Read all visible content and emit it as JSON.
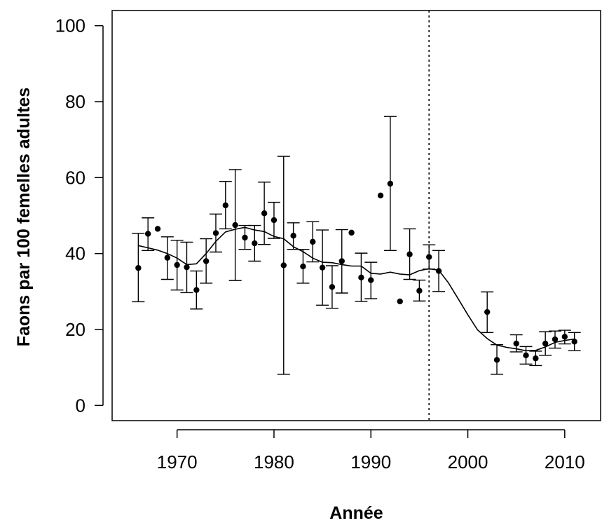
{
  "chart_data": {
    "type": "scatter",
    "title": "",
    "xlabel": "Année",
    "ylabel": "Faons par 100 femelles adultes",
    "xlim": [
      1963.3,
      2013.7
    ],
    "ylim": [
      -4,
      104
    ],
    "xticks": [
      1970,
      1980,
      1990,
      2000,
      2010
    ],
    "yticks": [
      0,
      20,
      40,
      60,
      80,
      100
    ],
    "xtick_labels": [
      "1970",
      "1980",
      "1990",
      "2000",
      "2010"
    ],
    "ytick_labels": [
      "0",
      "20",
      "40",
      "60",
      "80",
      "100"
    ],
    "grid": false,
    "legend": "none",
    "vertical_reference_line": {
      "x": 1996,
      "style": "dotted"
    },
    "points": [
      {
        "x": 1966,
        "y": 36.2,
        "low": 27.3,
        "high": 45.3
      },
      {
        "x": 1967,
        "y": 45.2,
        "low": 40.8,
        "high": 49.4
      },
      {
        "x": 1968,
        "y": 46.5
      },
      {
        "x": 1969,
        "y": 38.9,
        "low": 33.2,
        "high": 44.4
      },
      {
        "x": 1970,
        "y": 37.0,
        "low": 30.4,
        "high": 43.5
      },
      {
        "x": 1971,
        "y": 36.4,
        "low": 29.7,
        "high": 43.0
      },
      {
        "x": 1972,
        "y": 30.4,
        "low": 25.4,
        "high": 35.4
      },
      {
        "x": 1973,
        "y": 38.0,
        "low": 32.2,
        "high": 43.9
      },
      {
        "x": 1974,
        "y": 45.4,
        "low": 40.4,
        "high": 50.4
      },
      {
        "x": 1975,
        "y": 52.7,
        "low": 46.5,
        "high": 59.0
      },
      {
        "x": 1976,
        "y": 47.5,
        "low": 32.9,
        "high": 62.1
      },
      {
        "x": 1977,
        "y": 44.2,
        "low": 41.1,
        "high": 47.4
      },
      {
        "x": 1978,
        "y": 42.7,
        "low": 38.0,
        "high": 47.4
      },
      {
        "x": 1979,
        "y": 50.6,
        "low": 42.4,
        "high": 58.8
      },
      {
        "x": 1980,
        "y": 48.8,
        "low": 44.0,
        "high": 53.5
      },
      {
        "x": 1981,
        "y": 36.9,
        "low": 8.2,
        "high": 65.6
      },
      {
        "x": 1982,
        "y": 44.7,
        "low": 41.1,
        "high": 48.1
      },
      {
        "x": 1983,
        "y": 36.6,
        "low": 32.2,
        "high": 41.1
      },
      {
        "x": 1984,
        "y": 43.1,
        "low": 37.8,
        "high": 48.4
      },
      {
        "x": 1985,
        "y": 36.3,
        "low": 26.4,
        "high": 46.2
      },
      {
        "x": 1986,
        "y": 31.2,
        "low": 25.6,
        "high": 36.8
      },
      {
        "x": 1987,
        "y": 38.0,
        "low": 29.6,
        "high": 46.3
      },
      {
        "x": 1988,
        "y": 45.5
      },
      {
        "x": 1989,
        "y": 33.7,
        "low": 27.4,
        "high": 40.1
      },
      {
        "x": 1990,
        "y": 33.0,
        "low": 28.1,
        "high": 37.7
      },
      {
        "x": 1991,
        "y": 55.3
      },
      {
        "x": 1992,
        "y": 58.4,
        "low": 40.8,
        "high": 76.1
      },
      {
        "x": 1993,
        "y": 27.4
      },
      {
        "x": 1994,
        "y": 39.8,
        "low": 33.2,
        "high": 46.5
      },
      {
        "x": 1995,
        "y": 30.2,
        "low": 27.5,
        "high": 33.0
      },
      {
        "x": 1996,
        "y": 39.1,
        "low": 35.9,
        "high": 42.3
      },
      {
        "x": 1997,
        "y": 35.4,
        "low": 30.0,
        "high": 40.8
      },
      {
        "x": 2002,
        "y": 24.6,
        "low": 19.2,
        "high": 29.9
      },
      {
        "x": 2003,
        "y": 12.0,
        "low": 8.2,
        "high": 16.0
      },
      {
        "x": 2005,
        "y": 16.3,
        "low": 14.1,
        "high": 18.6
      },
      {
        "x": 2006,
        "y": 13.2,
        "low": 10.9,
        "high": 15.5
      },
      {
        "x": 2007,
        "y": 12.4,
        "low": 10.5,
        "high": 14.3
      },
      {
        "x": 2008,
        "y": 16.3,
        "low": 13.2,
        "high": 19.4
      },
      {
        "x": 2009,
        "y": 17.4,
        "low": 15.1,
        "high": 19.6
      },
      {
        "x": 2010,
        "y": 18.1,
        "low": 16.2,
        "high": 19.8
      },
      {
        "x": 2011,
        "y": 16.8,
        "low": 14.4,
        "high": 19.2
      }
    ],
    "trend_line": {
      "x": [
        1966,
        1967,
        1968,
        1969,
        1970,
        1971,
        1972,
        1973,
        1974,
        1975,
        1976,
        1977,
        1978,
        1979,
        1980,
        1981,
        1982,
        1983,
        1984,
        1985,
        1986,
        1987,
        1988,
        1989,
        1990,
        1991,
        1992,
        1993,
        1994,
        1995,
        1996,
        1997,
        1998,
        1999,
        2000,
        2001,
        2002,
        2003,
        2004,
        2005,
        2006,
        2007,
        2008,
        2009,
        2010,
        2011
      ],
      "y": [
        42.1,
        41.5,
        40.9,
        40.0,
        38.8,
        37.1,
        37.3,
        40.0,
        43.2,
        45.7,
        46.4,
        46.9,
        46.2,
        45.8,
        44.5,
        43.9,
        41.8,
        40.5,
        38.8,
        37.7,
        37.6,
        37.1,
        36.7,
        36.7,
        34.8,
        34.6,
        35.1,
        34.6,
        34.4,
        35.5,
        36.0,
        35.6,
        32.3,
        28.1,
        23.9,
        19.9,
        17.6,
        15.9,
        15.3,
        14.9,
        14.4,
        14.5,
        15.4,
        16.6,
        17.1,
        17.5
      ]
    }
  }
}
